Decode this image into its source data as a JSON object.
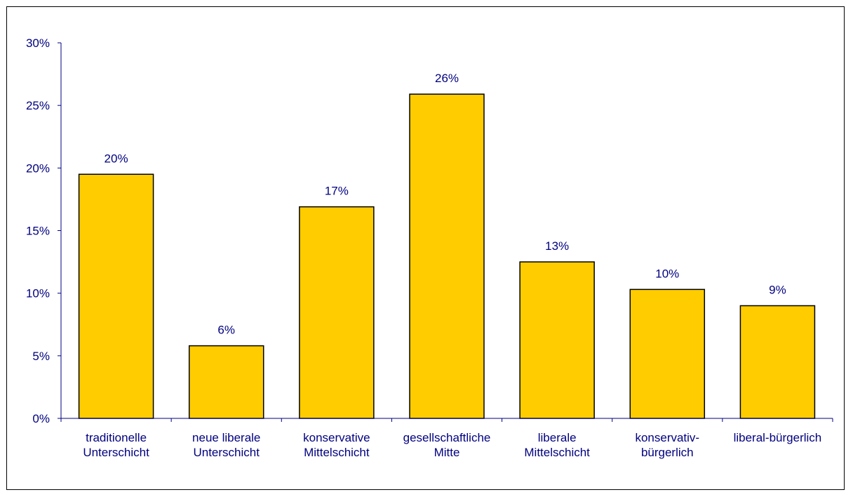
{
  "chart_data": {
    "type": "bar",
    "title": "",
    "xlabel": "",
    "ylabel": "",
    "ylim": [
      0,
      30
    ],
    "yticks": [
      "0%",
      "5%",
      "10%",
      "15%",
      "20%",
      "25%",
      "30%"
    ],
    "ytick_values": [
      0,
      5,
      10,
      15,
      20,
      25,
      30
    ],
    "categories": [
      [
        "traditionelle",
        "Unterschicht"
      ],
      [
        "neue liberale",
        "Unterschicht"
      ],
      [
        "konservative",
        "Mittelschicht"
      ],
      [
        "gesellschaftliche",
        "Mitte"
      ],
      [
        "liberale",
        "Mittelschicht"
      ],
      [
        "konservativ-",
        "bürgerlich"
      ],
      [
        "liberal-bürgerlich"
      ]
    ],
    "values": [
      19.5,
      5.8,
      16.9,
      25.9,
      12.5,
      10.3,
      9.0
    ],
    "data_labels": [
      "20%",
      "6%",
      "17%",
      "26%",
      "13%",
      "10%",
      "9%"
    ],
    "grid": false,
    "legend": "none",
    "colors": {
      "bar_fill": "#FFCC00",
      "bar_stroke": "#000000",
      "axis": "#000080",
      "text": "#000080"
    }
  }
}
